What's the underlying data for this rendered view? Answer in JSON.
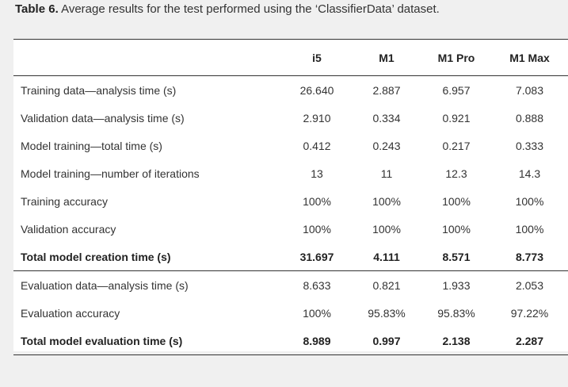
{
  "caption": {
    "label": "Table 6.",
    "text": " Average results for the test performed using the ‘ClassifierData’ dataset."
  },
  "table": {
    "columns": [
      "",
      "i5",
      "M1",
      "M1 Pro",
      "M1 Max"
    ],
    "rows": [
      {
        "label": "Training data—analysis time (s)",
        "values": [
          "26.640",
          "2.887",
          "6.957",
          "7.083"
        ],
        "bold": false
      },
      {
        "label": "Validation data—analysis time (s)",
        "values": [
          "2.910",
          "0.334",
          "0.921",
          "0.888"
        ],
        "bold": false
      },
      {
        "label": "Model training—total time (s)",
        "values": [
          "0.412",
          "0.243",
          "0.217",
          "0.333"
        ],
        "bold": false
      },
      {
        "label": "Model training—number of iterations",
        "values": [
          "13",
          "11",
          "12.3",
          "14.3"
        ],
        "bold": false
      },
      {
        "label": "Training accuracy",
        "values": [
          "100%",
          "100%",
          "100%",
          "100%"
        ],
        "bold": false
      },
      {
        "label": "Validation accuracy",
        "values": [
          "100%",
          "100%",
          "100%",
          "100%"
        ],
        "bold": false
      },
      {
        "label": "Total model creation time (s)",
        "values": [
          "31.697",
          "4.111",
          "8.571",
          "8.773"
        ],
        "bold": true
      },
      {
        "label": "Evaluation data—analysis time (s)",
        "values": [
          "8.633",
          "0.821",
          "1.933",
          "2.053"
        ],
        "bold": false
      },
      {
        "label": "Evaluation accuracy",
        "values": [
          "100%",
          "95.83%",
          "95.83%",
          "97.22%"
        ],
        "bold": false
      },
      {
        "label": "Total model evaluation time (s)",
        "values": [
          "8.989",
          "0.997",
          "2.138",
          "2.287"
        ],
        "bold": true
      }
    ]
  }
}
